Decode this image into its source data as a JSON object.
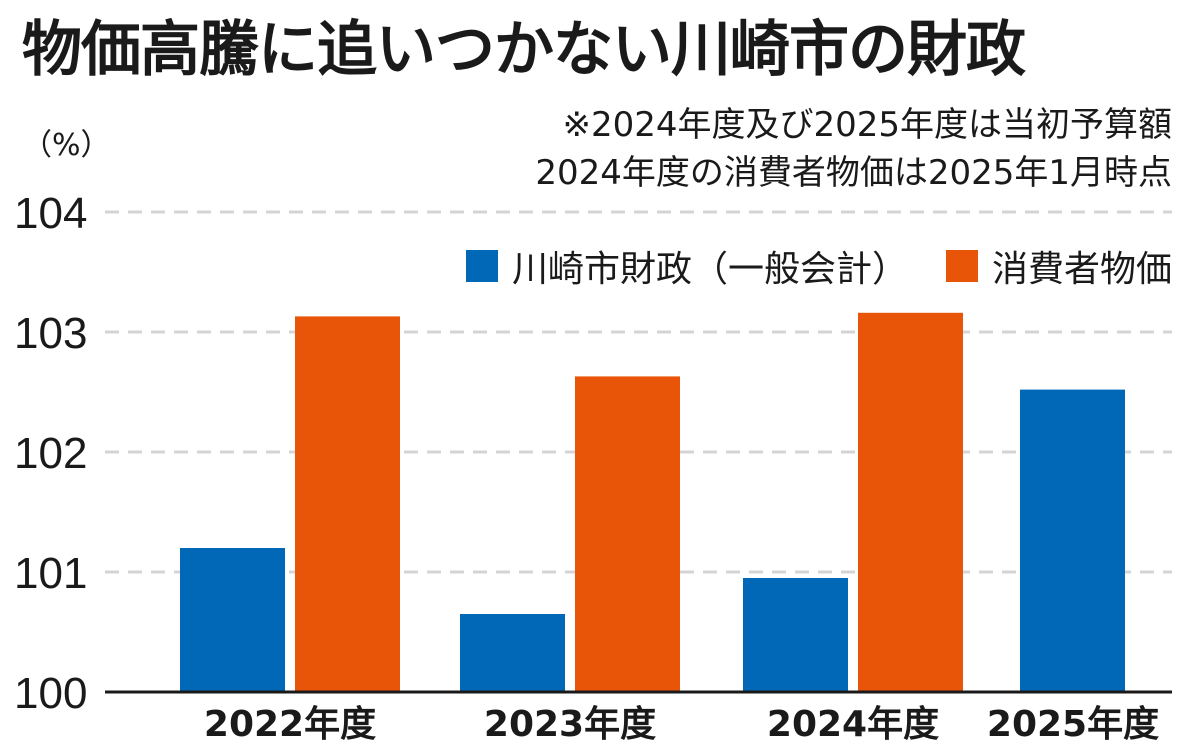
{
  "title": "物価高騰に追いつかない川崎市の財政",
  "notes": [
    "※2024年度及び2025年度は当初予算額",
    "2024年度の消費者物価は2025年1月時点"
  ],
  "chart_data": {
    "type": "bar",
    "title": "物価高騰に追いつかない川崎市の財政",
    "unit_label": "（%）",
    "categories": [
      "2022年度",
      "2023年度",
      "2024年度",
      "2025年度"
    ],
    "series": [
      {
        "name": "川崎市財政（一般会計）",
        "color": "#0068b7",
        "values": [
          101.2,
          100.65,
          100.95,
          102.52
        ]
      },
      {
        "name": "消費者物価",
        "color": "#e85408",
        "values": [
          103.13,
          102.63,
          103.16,
          null
        ]
      }
    ],
    "ylim": [
      100,
      104
    ],
    "yticks": [
      100,
      101,
      102,
      103,
      104
    ],
    "grid": true,
    "legend_position": "top-right"
  }
}
